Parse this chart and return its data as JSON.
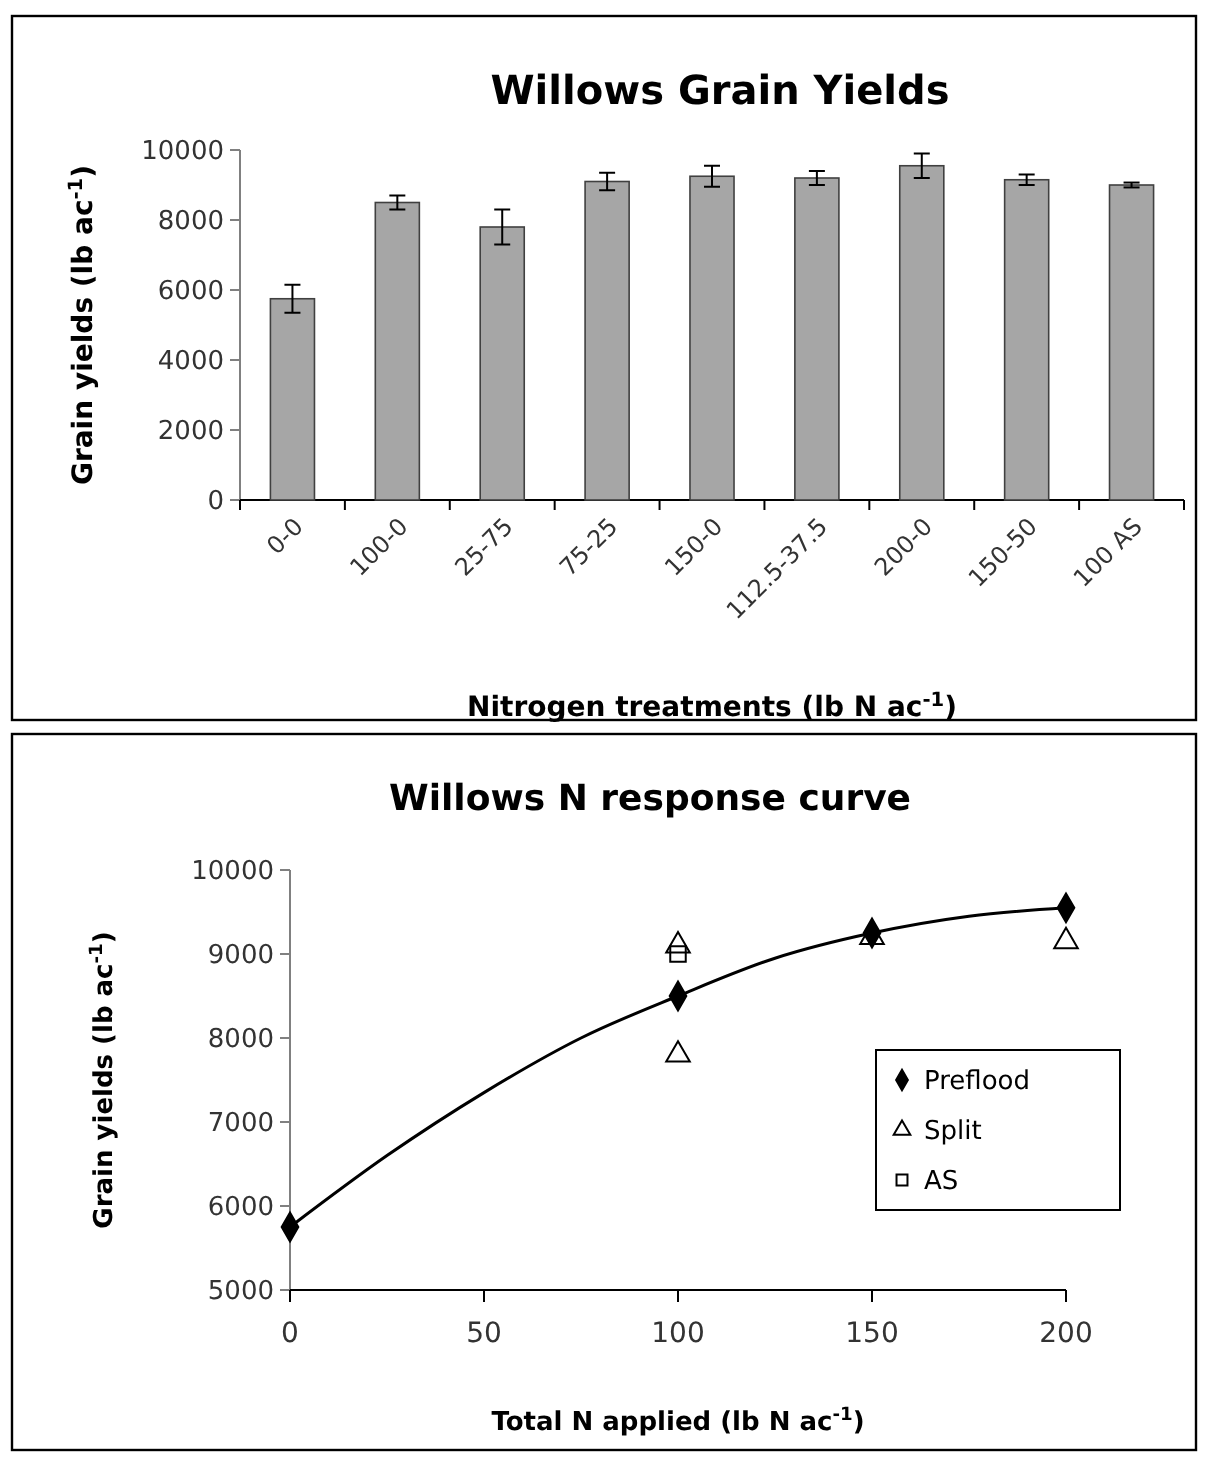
{
  "chart_data": [
    {
      "type": "bar",
      "title": "Willows Grain Yields",
      "xlabel": "Nitrogen treatments (lb N ac$^{-1}$)",
      "ylabel": "Grain yields (lb ac$^{-1}$)",
      "categories": [
        "0-0",
        "100-0",
        "25-75",
        "75-25",
        "150-0",
        "112.5-37.5",
        "200-0",
        "150-50",
        "100 AS"
      ],
      "values": [
        5750,
        8500,
        7800,
        9100,
        9250,
        9200,
        9550,
        9150,
        9000
      ],
      "errors": [
        400,
        200,
        500,
        250,
        300,
        200,
        350,
        150,
        70
      ],
      "color": "#a6a6a6",
      "ylim": [
        0,
        10000
      ],
      "yticks": [
        0,
        2000,
        4000,
        6000,
        8000,
        10000
      ]
    },
    {
      "type": "scatter",
      "title": "Willows N response curve",
      "xlabel": "Total N applied  (lb N ac$^{-1}$)",
      "ylabel": "Grain yields (lb ac$^{-1}$)",
      "xlim": [
        0,
        200
      ],
      "xticks": [
        0,
        50,
        100,
        150,
        200
      ],
      "ylim": [
        5000,
        10000
      ],
      "yticks": [
        5000,
        6000,
        7000,
        8000,
        9000,
        10000
      ],
      "legend": "right",
      "series": [
        {
          "type": "line",
          "color": "#000000",
          "marker": "none",
          "x": [
            0,
            25,
            50,
            75,
            100,
            125,
            150,
            175,
            200
          ],
          "values": [
            5750,
            6600,
            7350,
            8000,
            8500,
            8950,
            9250,
            9450,
            9550
          ]
        },
        {
          "name": "Preflood",
          "color": "#000000",
          "marker": "diamond",
          "x": [
            0,
            100,
            150,
            200
          ],
          "values": [
            5750,
            8500,
            9250,
            9550
          ]
        },
        {
          "name": "Split",
          "color": "#000000",
          "marker": "triangle",
          "x": [
            100,
            100,
            150,
            200
          ],
          "values": [
            7800,
            9100,
            9200,
            9150
          ]
        },
        {
          "name": "AS",
          "color": "#000000",
          "marker": "square",
          "x": [
            100
          ],
          "values": [
            9000
          ]
        }
      ]
    }
  ]
}
